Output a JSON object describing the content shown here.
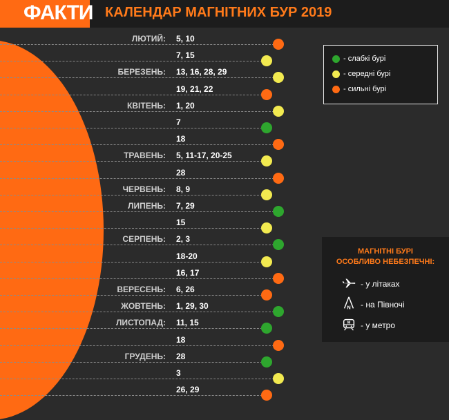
{
  "header": {
    "logo": "ФАКТИ",
    "title": "КАЛЕНДАР МАГНІТНИХ БУР 2019"
  },
  "colors": {
    "weak": "#2ea62e",
    "medium": "#f2ea50",
    "strong": "#ff6a13",
    "accent": "#ff6a13"
  },
  "months": [
    {
      "name": "ЛЮТИЙ:",
      "row": 0
    },
    {
      "name": "БЕРЕЗЕНЬ:",
      "row": 2
    },
    {
      "name": "КВІТЕНЬ:",
      "row": 4
    },
    {
      "name": "ТРАВЕНЬ:",
      "row": 7
    },
    {
      "name": "ЧЕРВЕНЬ:",
      "row": 9
    },
    {
      "name": "ЛИПЕНЬ:",
      "row": 10
    },
    {
      "name": "СЕРПЕНЬ:",
      "row": 12
    },
    {
      "name": "ВЕРЕСЕНЬ:",
      "row": 15
    },
    {
      "name": "ЖОВТЕНЬ:",
      "row": 16
    },
    {
      "name": "ЛИСТОПАД:",
      "row": 17
    },
    {
      "name": "ГРУДЕНЬ:",
      "row": 19
    }
  ],
  "rows": [
    {
      "dates": "5, 10",
      "level": "strong"
    },
    {
      "dates": "7, 15",
      "level": "medium"
    },
    {
      "dates": "13, 16, 28, 29",
      "level": "medium"
    },
    {
      "dates": "19, 21, 22",
      "level": "strong"
    },
    {
      "dates": "1, 20",
      "level": "medium"
    },
    {
      "dates": "7",
      "level": "weak"
    },
    {
      "dates": "18",
      "level": "strong"
    },
    {
      "dates": "5, 11-17, 20-25",
      "level": "medium"
    },
    {
      "dates": "28",
      "level": "strong"
    },
    {
      "dates": "8, 9",
      "level": "medium"
    },
    {
      "dates": "7, 29",
      "level": "weak"
    },
    {
      "dates": "15",
      "level": "medium"
    },
    {
      "dates": "2, 3",
      "level": "weak"
    },
    {
      "dates": "18-20",
      "level": "medium"
    },
    {
      "dates": "16, 17",
      "level": "strong"
    },
    {
      "dates": "6, 26",
      "level": "strong"
    },
    {
      "dates": "1, 29, 30",
      "level": "weak"
    },
    {
      "dates": "11, 15",
      "level": "weak"
    },
    {
      "dates": "18",
      "level": "strong"
    },
    {
      "dates": "28",
      "level": "weak"
    },
    {
      "dates": "3",
      "level": "medium"
    },
    {
      "dates": "26, 29",
      "level": "strong"
    }
  ],
  "legend": {
    "items": [
      {
        "label": "- слабкі бурі",
        "level": "weak"
      },
      {
        "label": "- середні бурі",
        "level": "medium"
      },
      {
        "label": "- сильні бурі",
        "level": "strong"
      }
    ]
  },
  "danger": {
    "title_line1": "МАГНІТНІ БУРІ",
    "title_line2": "ОСОБЛИВО НЕБЕЗПЕЧНІ:",
    "items": [
      {
        "label": "- у літаках",
        "icon": "airplane-icon"
      },
      {
        "label": "- на Півночі",
        "icon": "compass-north-icon",
        "icon_letter": "N"
      },
      {
        "label": "- у метро",
        "icon": "metro-train-icon",
        "icon_letter": "M"
      }
    ]
  }
}
